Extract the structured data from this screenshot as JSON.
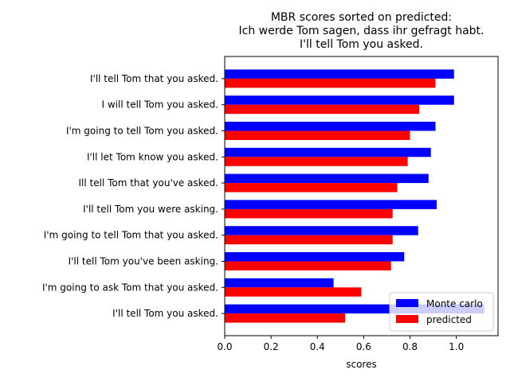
{
  "chart_data": {
    "type": "bar",
    "orientation": "horizontal",
    "title": "MBR scores sorted on predicted:\nIch werde Tom sagen, dass ihr gefragt habt.\nI'll tell Tom you asked.",
    "xlabel": "scores",
    "ylabel": "",
    "xlim": [
      0,
      1.18
    ],
    "xticks": [
      0.0,
      0.2,
      0.4,
      0.6,
      0.8,
      1.0
    ],
    "xtick_labels": [
      "0.0",
      "0.2",
      "0.4",
      "0.6",
      "0.8",
      "1.0"
    ],
    "grid": false,
    "legend_position": "bottom-right",
    "categories": [
      "I'll tell Tom you asked.",
      "I'm going to ask Tom that you asked.",
      "I'll tell Tom you've been asking.",
      "I'm going to tell Tom that you asked.",
      "I'll tell Tom you were asking.",
      "Ill tell Tom that you've asked.",
      "I'll let Tom know you asked.",
      "I'm going to tell Tom you asked.",
      "I will tell Tom you asked.",
      "I'll tell Tom that you asked."
    ],
    "series": [
      {
        "name": "Monte carlo",
        "color": "#0000ff",
        "values": [
          1.12,
          0.47,
          0.775,
          0.835,
          0.915,
          0.88,
          0.89,
          0.91,
          0.99,
          0.99
        ]
      },
      {
        "name": "predicted",
        "color": "#ff0000",
        "values": [
          0.52,
          0.59,
          0.718,
          0.725,
          0.725,
          0.745,
          0.79,
          0.8,
          0.84,
          0.91
        ]
      }
    ]
  }
}
